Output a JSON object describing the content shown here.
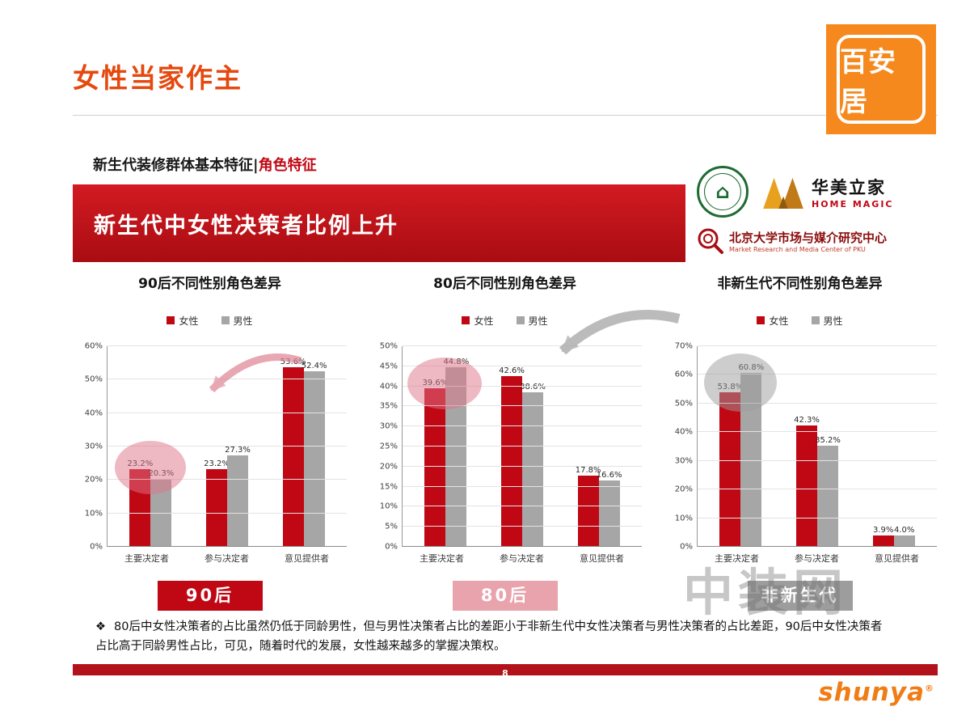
{
  "header": {
    "title": "女性当家作主",
    "logo_text": "百安居"
  },
  "subheader": {
    "left": "新生代装修群体基本特征",
    "divider": "|",
    "right": "角色特征"
  },
  "banner": {
    "title": "新生代中女性决策者比例上升"
  },
  "partners": {
    "emblem_glyph": "⌂",
    "home_magic_cn": "华美立家",
    "home_magic_en": "HOME MAGIC",
    "pku_cn": "北京大学市场与媒介研究中心",
    "pku_en": "Market Research and Media Center of PKU"
  },
  "group_labels": [
    {
      "label": "90后",
      "color": "#c00714"
    },
    {
      "label": "80后",
      "color": "#e8a3ad"
    },
    {
      "label": "非新生代",
      "color": "#9d9d9d"
    }
  ],
  "footnote": {
    "bullet": "❖",
    "text": "80后中女性决策者的占比虽然仍低于同龄男性，但与男性决策者占比的差距小于非新生代中女性决策者与男性决策者的占比差距，90后中女性决策者占比高于同龄男性占比，可见，随着时代的发展，女性越来越多的掌握决策权。"
  },
  "footer": {
    "page_number": "8",
    "brand": "shunya",
    "brand_reg": "®"
  },
  "watermark": "中装网",
  "colors": {
    "female": "#c00714",
    "male": "#a6a6a6",
    "banner_red": "#b2121a",
    "brand_orange": "#f6891e"
  },
  "chart_data": [
    {
      "type": "bar",
      "title": "90后不同性别角色差异",
      "categories": [
        "主要决定者",
        "参与决定者",
        "意见提供者"
      ],
      "series": [
        {
          "name": "女性",
          "color": "#c00714",
          "values": [
            23.2,
            23.2,
            53.6
          ]
        },
        {
          "name": "男性",
          "color": "#a6a6a6",
          "values": [
            20.3,
            27.3,
            52.4
          ]
        }
      ],
      "ylim": [
        0,
        60
      ],
      "ystep": 10,
      "grid": true,
      "legend_position": "top"
    },
    {
      "type": "bar",
      "title": "80后不同性别角色差异",
      "categories": [
        "主要决定者",
        "参与决定者",
        "意见提供者"
      ],
      "series": [
        {
          "name": "女性",
          "color": "#c00714",
          "values": [
            39.6,
            42.6,
            17.8
          ]
        },
        {
          "name": "男性",
          "color": "#a6a6a6",
          "values": [
            44.8,
            38.6,
            16.6
          ]
        }
      ],
      "ylim": [
        0,
        50
      ],
      "ystep": 5,
      "grid": true,
      "legend_position": "top"
    },
    {
      "type": "bar",
      "title": "非新生代不同性别角色差异",
      "categories": [
        "主要决定者",
        "参与决定者",
        "意见提供者"
      ],
      "series": [
        {
          "name": "女性",
          "color": "#c00714",
          "values": [
            53.8,
            42.3,
            3.9
          ]
        },
        {
          "name": "男性",
          "color": "#a6a6a6",
          "values": [
            60.8,
            35.2,
            4.0
          ]
        }
      ],
      "ylim": [
        0,
        70
      ],
      "ystep": 10,
      "grid": true,
      "legend_position": "top"
    }
  ]
}
